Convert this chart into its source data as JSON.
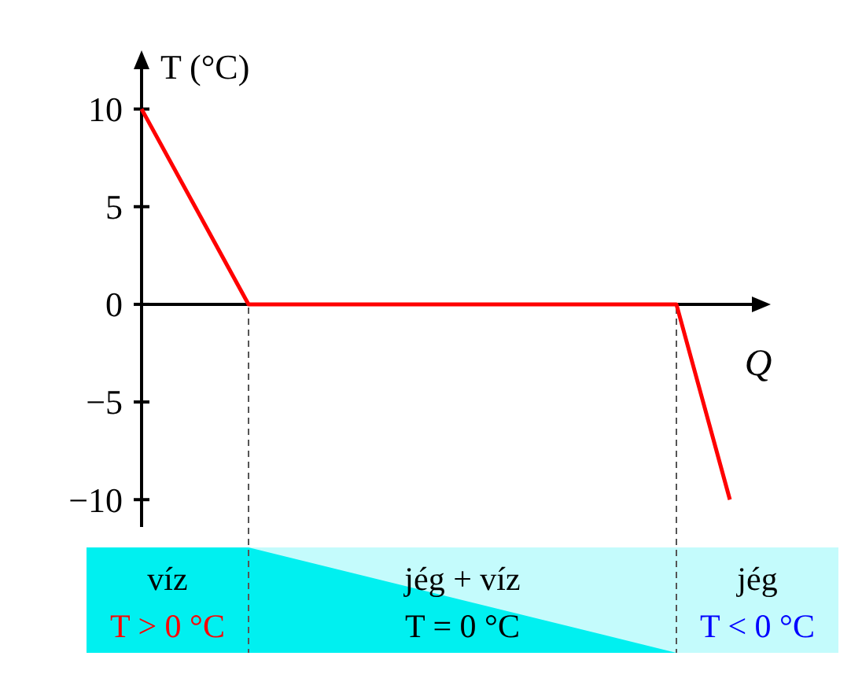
{
  "chart_data": {
    "type": "line",
    "ylabel": "T (°C)",
    "xlabel": "Q",
    "categories": [
      null,
      null,
      null,
      null,
      null,
      null,
      null,
      null,
      null,
      null,
      null,
      null
    ],
    "series": [
      {
        "color": "#ff0000",
        "values": [
          10,
          5,
          0,
          0,
          0,
          0,
          0,
          0,
          0,
          0,
          0,
          -10
        ]
      }
    ],
    "ylim": [
      -11.4,
      12.2
    ],
    "yticks": [
      {
        "value": 10,
        "label": "10"
      },
      {
        "value": 5,
        "label": "5"
      },
      {
        "value": 0,
        "label": "0"
      },
      {
        "value": -5,
        "label": "−5"
      },
      {
        "value": -10,
        "label": "−10"
      }
    ],
    "grid": false,
    "marker": "none",
    "line_style": "solid",
    "annotations": [
      "víz",
      "T > 0 °C",
      "jég + víz",
      "T = 0 °C",
      "jég",
      "T < 0 °C"
    ]
  }
}
